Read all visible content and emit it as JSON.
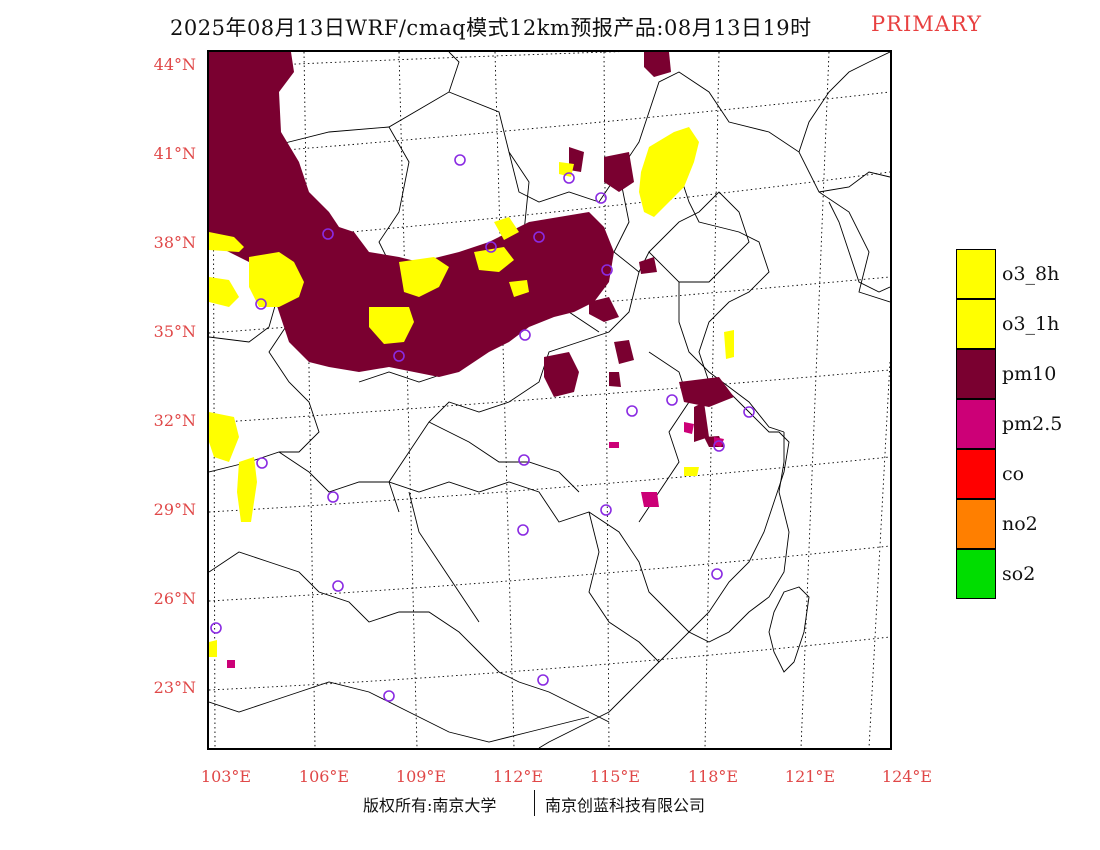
{
  "header": {
    "title": "2025年08月13日WRF/cmaq模式12km预报产品:08月13日19时",
    "tag": "PRIMARY"
  },
  "map": {
    "lat_labels": [
      "44°N",
      "41°N",
      "38°N",
      "35°N",
      "32°N",
      "29°N",
      "26°N",
      "23°N"
    ],
    "lon_labels": [
      "103°E",
      "106°E",
      "109°E",
      "112°E",
      "115°E",
      "118°E",
      "121°E",
      "124°E"
    ],
    "colors": {
      "o3_8h": "#ffff00",
      "o3_1h": "#ffff00",
      "pm10": "#7a0030",
      "pm2_5": "#cc0077",
      "co": "#ff0000",
      "no2": "#ff7f00",
      "so2": "#00dd00",
      "station_marker": "#8a2be2",
      "graticule": "#000000"
    }
  },
  "legend": {
    "items": [
      {
        "label": "o3_8h",
        "color": "#ffff00"
      },
      {
        "label": "o3_1h",
        "color": "#ffff00"
      },
      {
        "label": "pm10",
        "color": "#7a0030"
      },
      {
        "label": "pm2.5",
        "color": "#cc0077"
      },
      {
        "label": "co",
        "color": "#ff0000"
      },
      {
        "label": "no2",
        "color": "#ff7f00"
      },
      {
        "label": "so2",
        "color": "#00dd00"
      }
    ]
  },
  "footer": {
    "left": "版权所有:南京大学",
    "right": "南京创蓝科技有限公司"
  }
}
